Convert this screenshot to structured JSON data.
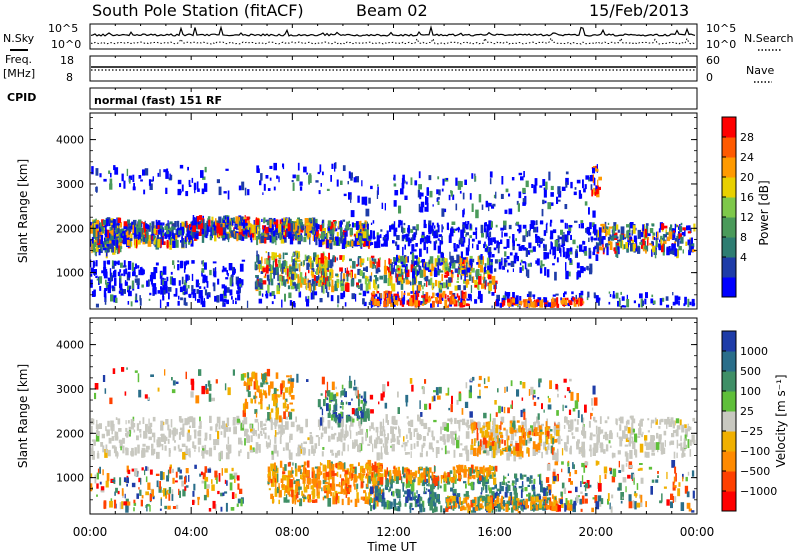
{
  "header": {
    "station": "South Pole Station (fitACF)",
    "beam": "Beam 02",
    "date": "15/Feb/2013"
  },
  "params": {
    "nsky_label": "N.Sky",
    "nsearch_label": "N.Search",
    "freq_label_1": "Freq.",
    "freq_label_2": "[MHz]",
    "nave_label": "Nave",
    "cpid_label": "CPID",
    "cpid_value": "normal (fast) 151 RF",
    "nsky_ticks": [
      "10^5",
      "10^0"
    ],
    "nsearch_ticks": [
      "10^5",
      "10^0"
    ],
    "freq_ticks": [
      "18",
      "8"
    ],
    "nave_ticks": [
      "60",
      "0"
    ]
  },
  "chart_data": [
    {
      "type": "heatmap",
      "name": "power",
      "ylabel": "Slant Range [km]",
      "ylim": [
        180,
        4600
      ],
      "yticks": [
        "4000",
        "3000",
        "2000",
        "1000"
      ],
      "xticks": [
        "00:00",
        "04:00",
        "08:00",
        "12:00",
        "16:00",
        "20:00",
        "00:00"
      ],
      "colorbar_label": "Power [dB]",
      "colorbar_ticks": [
        "28",
        "24",
        "20",
        "16",
        "12",
        "8",
        "4"
      ],
      "colors": [
        "#0000ff",
        "#1e3ca8",
        "#2e7d72",
        "#4a9a5a",
        "#7ec84a",
        "#e8d000",
        "#ff9a00",
        "#ff5a00",
        "#ff0000"
      ]
    },
    {
      "type": "heatmap",
      "name": "velocity",
      "ylabel": "Slant Range [km]",
      "ylim": [
        180,
        4600
      ],
      "yticks": [
        "4000",
        "3000",
        "2000",
        "1000"
      ],
      "xticks": [
        "00:00",
        "04:00",
        "08:00",
        "12:00",
        "16:00",
        "20:00",
        "00:00"
      ],
      "xlabel": "Time UT",
      "colorbar_label": "Velocity [m s⁻¹]",
      "colorbar_ticks": [
        "1000",
        "500",
        "100",
        "25",
        "−25",
        "−100",
        "−500",
        "−1000"
      ],
      "colors": [
        "#1e3ca8",
        "#2a6e8a",
        "#3f8f66",
        "#5fbf3a",
        "#c8c8c0",
        "#f0b000",
        "#ff8a00",
        "#ff4000",
        "#ff0000"
      ]
    }
  ]
}
